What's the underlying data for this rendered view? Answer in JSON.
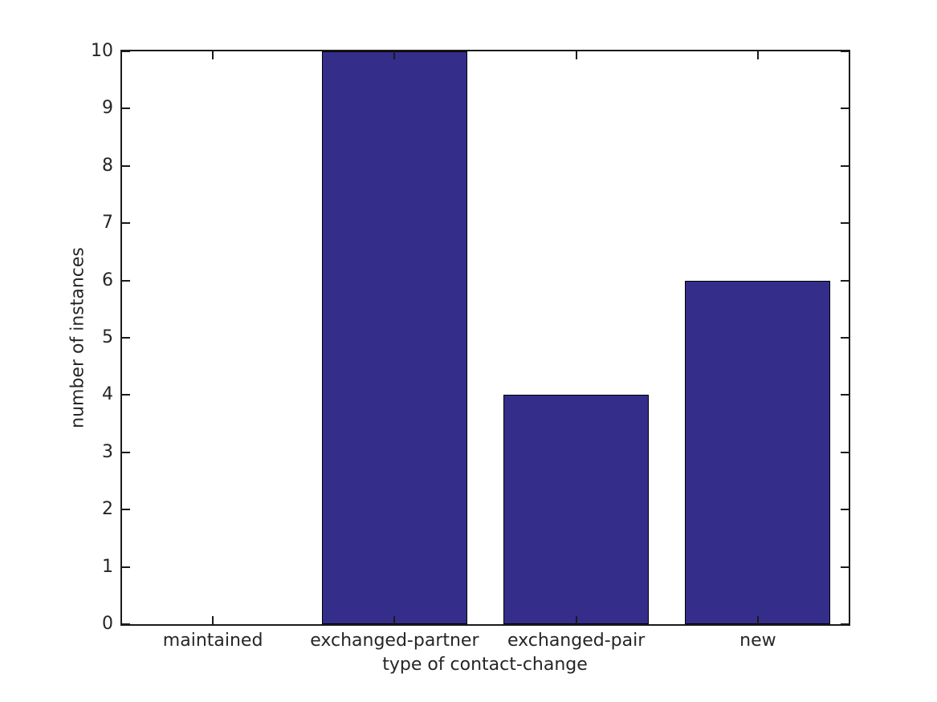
{
  "chart_data": {
    "type": "bar",
    "title": "",
    "categories": [
      "maintained",
      "exchanged-partner",
      "exchanged-pair",
      "new"
    ],
    "values": [
      0,
      10,
      4,
      6
    ],
    "xlabel": "type of contact-change",
    "ylabel": "number of instances",
    "ylim": [
      0,
      10
    ],
    "y_ticks": [
      "0",
      "1",
      "2",
      "3",
      "4",
      "5",
      "6",
      "7",
      "8",
      "9",
      "10"
    ],
    "bar_width_fraction": 0.8,
    "grid": false,
    "legend_position": "none",
    "colors": {
      "bar_fill": "#352d8a",
      "bar_edge": "#000000",
      "axis": "#1a1a1a",
      "text": "#262626",
      "background": "#ffffff"
    }
  }
}
